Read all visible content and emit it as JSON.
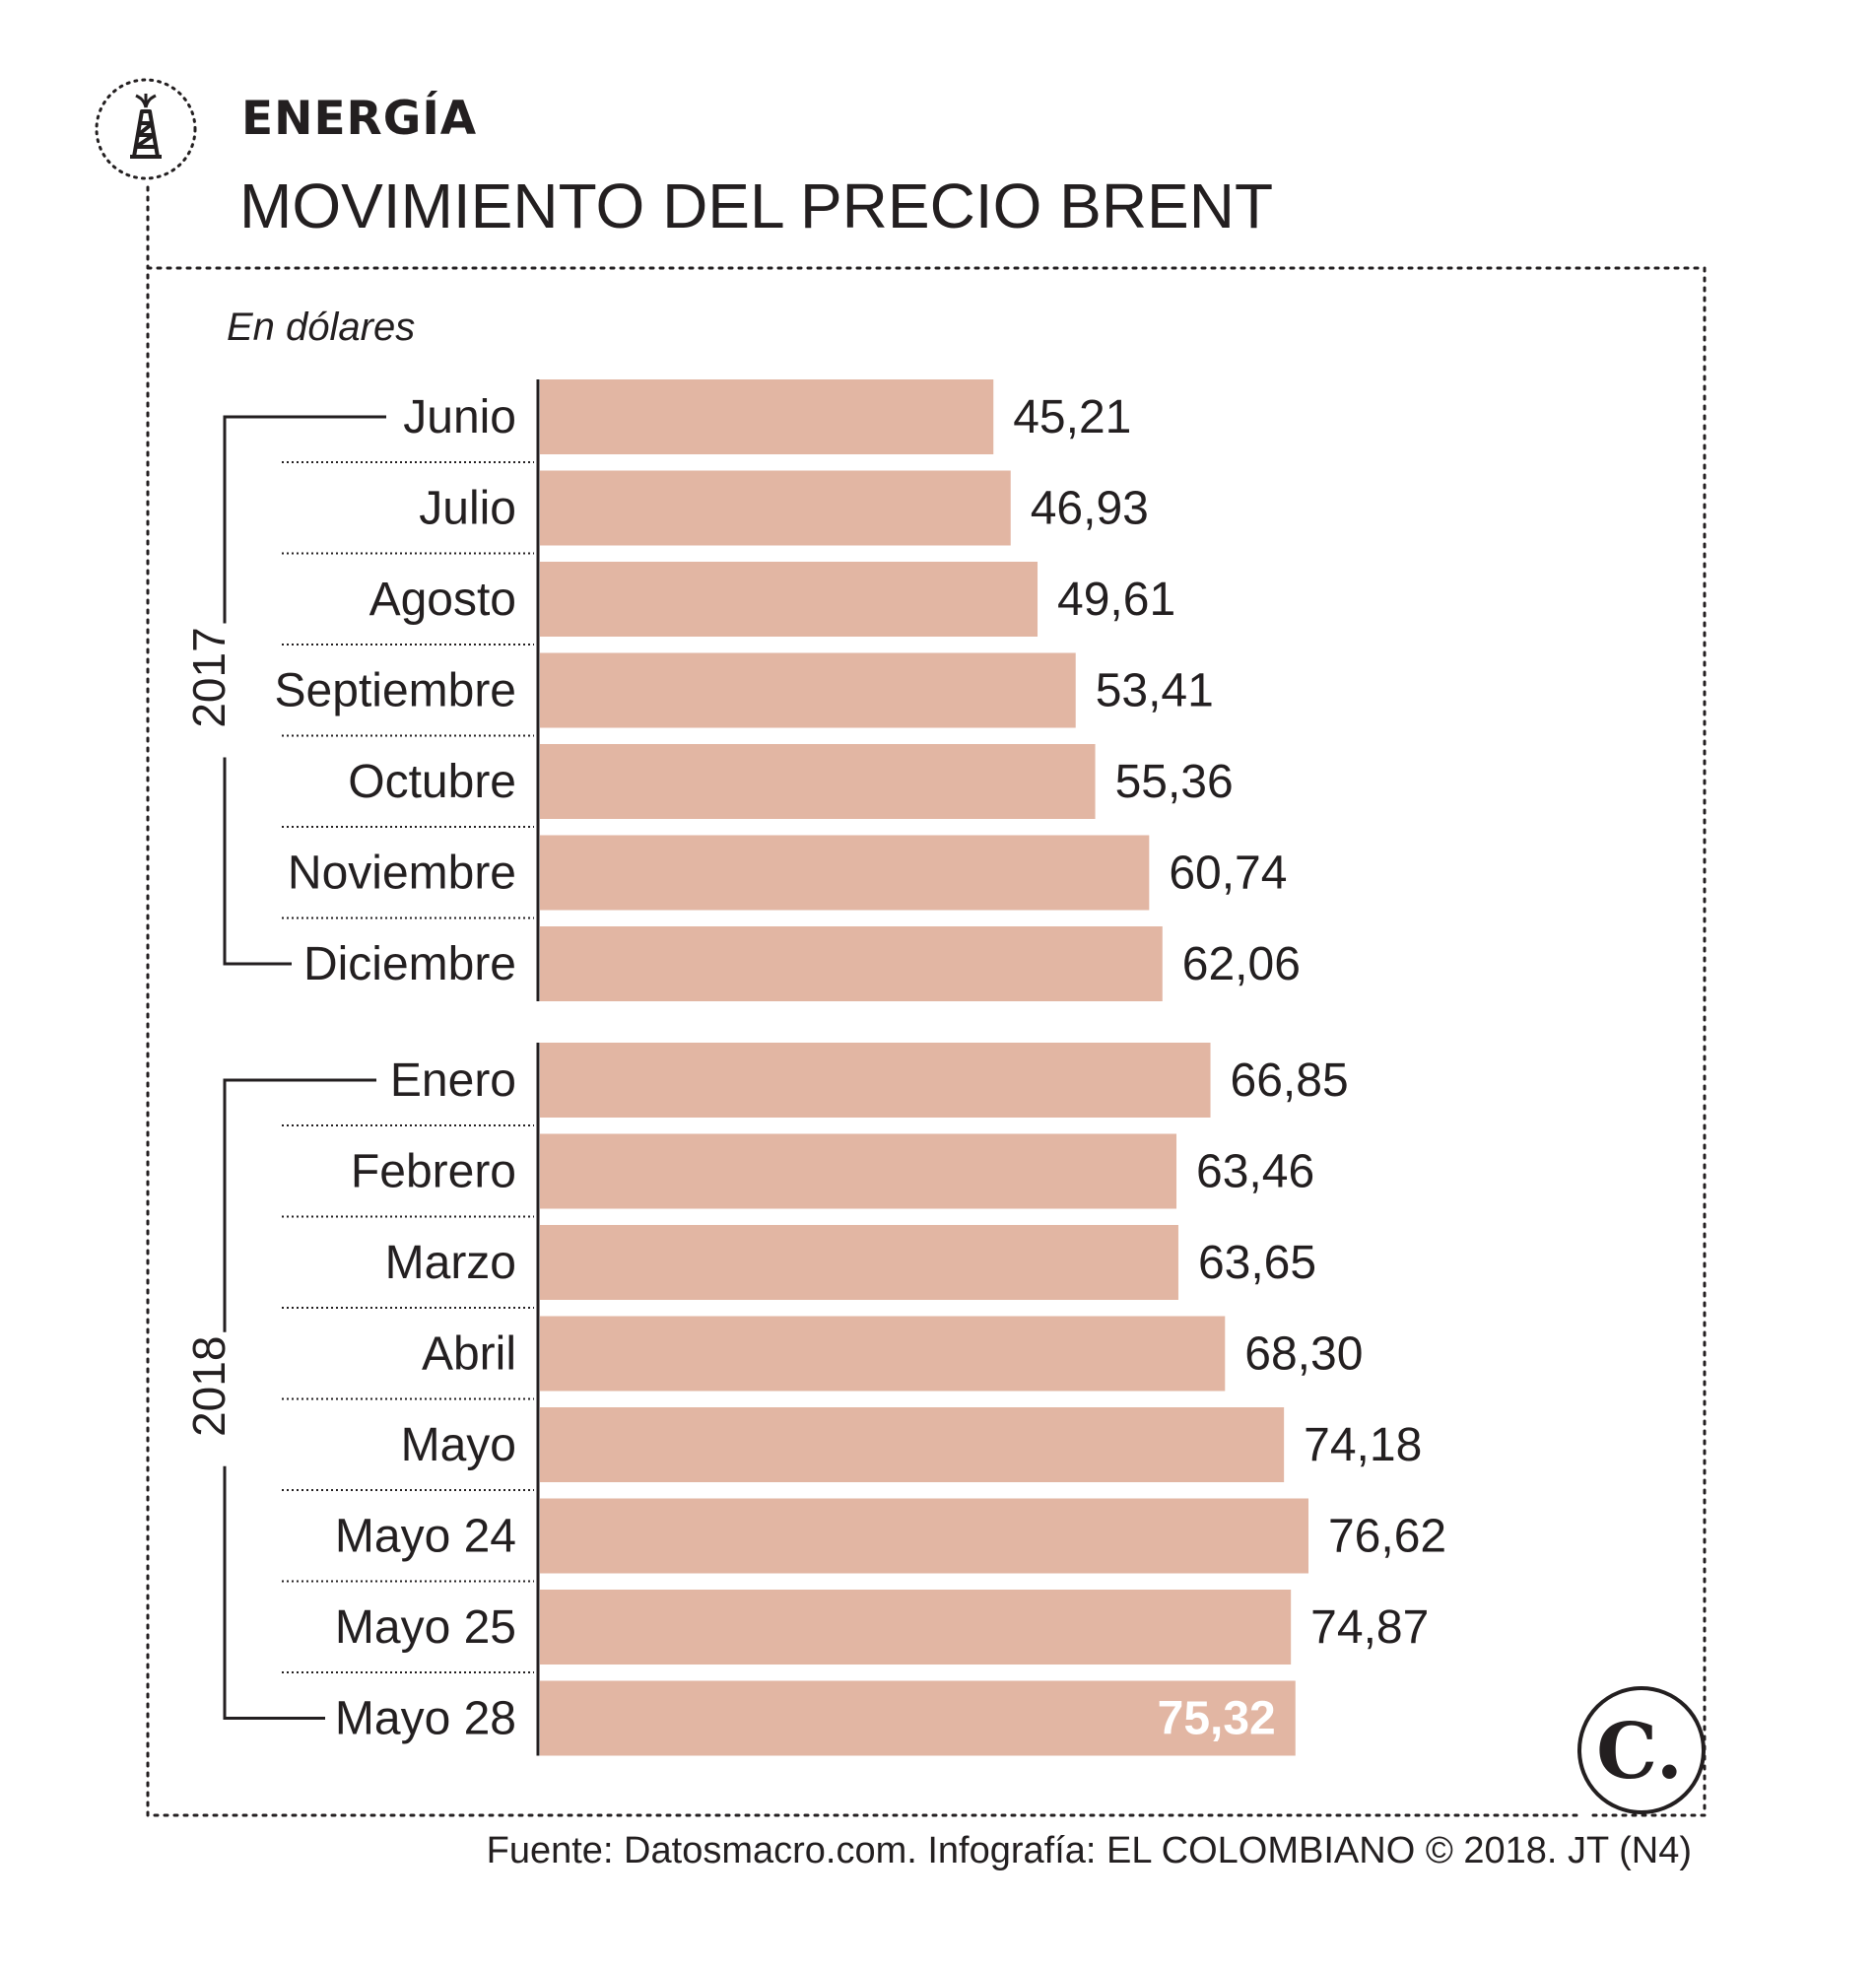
{
  "header": {
    "section": "ENERGÍA",
    "title": "MOVIMIENTO DEL PRECIO BRENT"
  },
  "unit": "En dólares",
  "footer": {
    "source": "Fuente: Datosmacro.com. Infografía: EL COLOMBIANO © 2018. JT (N4)"
  },
  "logo_text": "C.",
  "colors": {
    "bar": "#e2b6a3",
    "text": "#231f20",
    "highlight_text": "#ffffff"
  },
  "icons": {
    "section": "oil-derrick-icon",
    "logo": "el-colombiano-logo-icon"
  },
  "chart_data": {
    "type": "bar",
    "orientation": "horizontal",
    "title": "MOVIMIENTO DEL PRECIO BRENT",
    "unit": "En dólares",
    "groups": [
      {
        "label": "2017",
        "categories": [
          "Junio",
          "Julio",
          "Agosto",
          "Septiembre",
          "Octubre",
          "Noviembre",
          "Diciembre"
        ],
        "values": [
          45.21,
          46.93,
          49.61,
          53.41,
          55.36,
          60.74,
          62.06
        ],
        "labels": [
          "45,21",
          "46,93",
          "49,61",
          "53,41",
          "55,36",
          "60,74",
          "62,06"
        ]
      },
      {
        "label": "2018",
        "categories": [
          "Enero",
          "Febrero",
          "Marzo",
          "Abril",
          "Mayo",
          "Mayo 24",
          "Mayo 25",
          "Mayo 28"
        ],
        "values": [
          66.85,
          63.46,
          63.65,
          68.3,
          74.18,
          76.62,
          74.87,
          75.32
        ],
        "labels": [
          "66,85",
          "63,46",
          "63,65",
          "68,30",
          "74,18",
          "76,62",
          "74,87",
          "75,32"
        ]
      }
    ],
    "highlight": "Mayo 28",
    "grid": false,
    "legend": "none"
  }
}
